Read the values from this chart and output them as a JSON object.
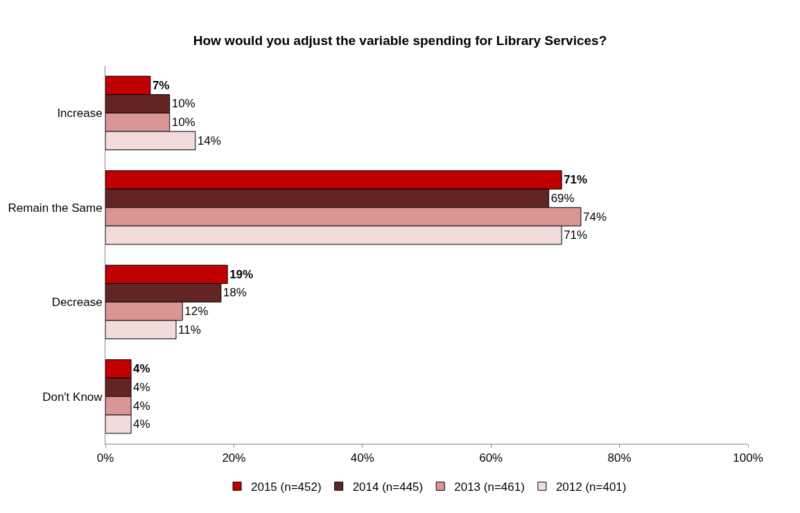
{
  "chart_data": {
    "type": "bar",
    "orientation": "horizontal",
    "title": "How would you adjust the variable spending for Library Services?",
    "categories": [
      "Increase",
      "Remain the Same",
      "Decrease",
      "Don't Know"
    ],
    "series": [
      {
        "name": "2015 (n=452)",
        "color": "#c00000",
        "values": [
          7,
          71,
          19,
          4
        ],
        "value_labels": [
          "7%",
          "71%",
          "19%",
          "4%"
        ]
      },
      {
        "name": "2014 (n=445)",
        "color": "#632523",
        "values": [
          10,
          69,
          18,
          4
        ],
        "value_labels": [
          "10%",
          "69%",
          "18%",
          "4%"
        ]
      },
      {
        "name": "2013 (n=461)",
        "color": "#d99694",
        "values": [
          10,
          74,
          12,
          4
        ],
        "value_labels": [
          "10%",
          "74%",
          "12%",
          "4%"
        ]
      },
      {
        "name": "2012 (n=401)",
        "color": "#f2dcdb",
        "values": [
          14,
          71,
          11,
          4
        ],
        "value_labels": [
          "14%",
          "71%",
          "11%",
          "4%"
        ]
      }
    ],
    "xlim": [
      0,
      100
    ],
    "xticks": [
      {
        "value": 0,
        "label": "0%"
      },
      {
        "value": 20,
        "label": "20%"
      },
      {
        "value": 40,
        "label": "40%"
      },
      {
        "value": 60,
        "label": "60%"
      },
      {
        "value": 80,
        "label": "80%"
      },
      {
        "value": 100,
        "label": "100%"
      }
    ],
    "legend": "bottom"
  }
}
